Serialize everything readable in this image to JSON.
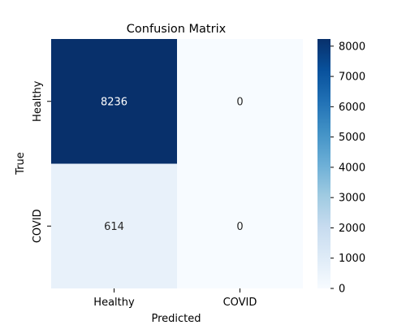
{
  "chart_data": {
    "type": "heatmap",
    "title": "Confusion Matrix",
    "xlabel": "Predicted",
    "ylabel": "True",
    "x_categories": [
      "Healthy",
      "COVID"
    ],
    "y_categories": [
      "Healthy",
      "COVID"
    ],
    "values": [
      [
        8236,
        0
      ],
      [
        614,
        0
      ]
    ],
    "colormap": "Blues",
    "colorbar": {
      "min": 0,
      "max": 8236,
      "ticks": [
        0,
        1000,
        2000,
        3000,
        4000,
        5000,
        6000,
        7000,
        8000
      ]
    }
  }
}
